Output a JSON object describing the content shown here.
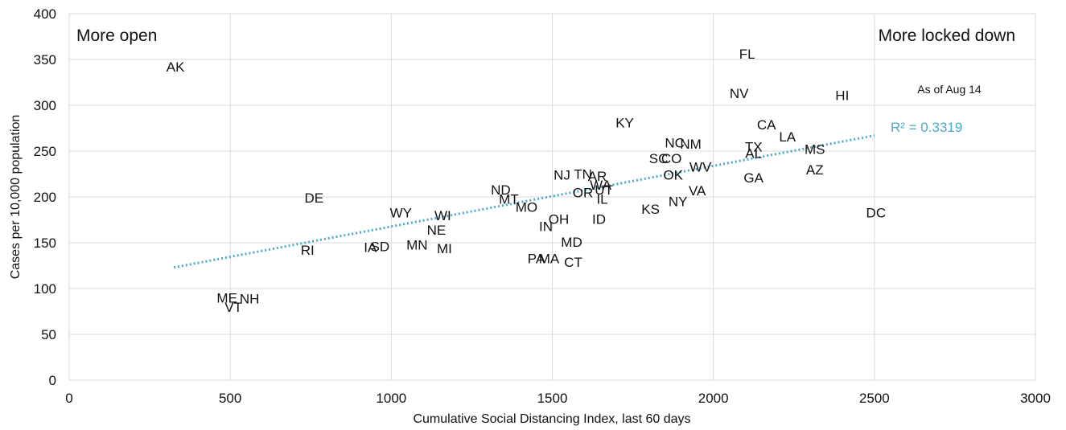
{
  "chart_data": {
    "type": "scatter",
    "xlabel": "Cumulative Social Distancing Index, last 60 days",
    "ylabel": "Cases per 10,000 population",
    "xlim": [
      0,
      3000
    ],
    "ylim": [
      0,
      400
    ],
    "x_ticks": [
      0,
      500,
      1000,
      1500,
      2000,
      2500,
      3000
    ],
    "y_ticks": [
      0,
      50,
      100,
      150,
      200,
      250,
      300,
      350,
      400
    ],
    "grid": true,
    "annotations": {
      "left_label": "More open",
      "right_label": "More locked down",
      "date_note": "As of Aug 14",
      "r_squared": "R² = 0.3319"
    },
    "trendline": {
      "type": "linear",
      "color": "#4bacc6",
      "from": {
        "x": 325,
        "y": 123
      },
      "to": {
        "x": 2500,
        "y": 267
      }
    },
    "points": [
      {
        "label": "AK",
        "x": 330,
        "y": 342
      },
      {
        "label": "ME",
        "x": 490,
        "y": 90
      },
      {
        "label": "NH",
        "x": 560,
        "y": 89
      },
      {
        "label": "VT",
        "x": 510,
        "y": 80
      },
      {
        "label": "RI",
        "x": 740,
        "y": 142
      },
      {
        "label": "DE",
        "x": 760,
        "y": 199
      },
      {
        "label": "IA",
        "x": 935,
        "y": 145
      },
      {
        "label": "SD",
        "x": 965,
        "y": 146
      },
      {
        "label": "WY",
        "x": 1030,
        "y": 183
      },
      {
        "label": "MN",
        "x": 1080,
        "y": 148
      },
      {
        "label": "NE",
        "x": 1140,
        "y": 164
      },
      {
        "label": "WI",
        "x": 1160,
        "y": 180
      },
      {
        "label": "MI",
        "x": 1165,
        "y": 144
      },
      {
        "label": "ND",
        "x": 1340,
        "y": 208
      },
      {
        "label": "MT",
        "x": 1365,
        "y": 198
      },
      {
        "label": "MO",
        "x": 1420,
        "y": 189
      },
      {
        "label": "PA",
        "x": 1450,
        "y": 133
      },
      {
        "label": "MA",
        "x": 1490,
        "y": 133
      },
      {
        "label": "IN",
        "x": 1480,
        "y": 168
      },
      {
        "label": "OH",
        "x": 1520,
        "y": 176
      },
      {
        "label": "NJ",
        "x": 1530,
        "y": 224
      },
      {
        "label": "MD",
        "x": 1560,
        "y": 151
      },
      {
        "label": "CT",
        "x": 1565,
        "y": 129
      },
      {
        "label": "TN",
        "x": 1595,
        "y": 225
      },
      {
        "label": "OR",
        "x": 1595,
        "y": 205
      },
      {
        "label": "AR",
        "x": 1640,
        "y": 223
      },
      {
        "label": "WA",
        "x": 1650,
        "y": 213
      },
      {
        "label": "UT",
        "x": 1660,
        "y": 208
      },
      {
        "label": "IL",
        "x": 1655,
        "y": 198
      },
      {
        "label": "ID",
        "x": 1645,
        "y": 176
      },
      {
        "label": "KY",
        "x": 1725,
        "y": 281
      },
      {
        "label": "KS",
        "x": 1805,
        "y": 187
      },
      {
        "label": "SC",
        "x": 1830,
        "y": 242
      },
      {
        "label": "CO",
        "x": 1870,
        "y": 242
      },
      {
        "label": "OK",
        "x": 1875,
        "y": 224
      },
      {
        "label": "NC",
        "x": 1880,
        "y": 259
      },
      {
        "label": "NM",
        "x": 1930,
        "y": 258
      },
      {
        "label": "NY",
        "x": 1890,
        "y": 195
      },
      {
        "label": "WV",
        "x": 1960,
        "y": 233
      },
      {
        "label": "VA",
        "x": 1950,
        "y": 207
      },
      {
        "label": "NV",
        "x": 2080,
        "y": 313
      },
      {
        "label": "FL",
        "x": 2105,
        "y": 356
      },
      {
        "label": "TX",
        "x": 2125,
        "y": 255
      },
      {
        "label": "AL",
        "x": 2125,
        "y": 248
      },
      {
        "label": "GA",
        "x": 2125,
        "y": 221
      },
      {
        "label": "CA",
        "x": 2165,
        "y": 279
      },
      {
        "label": "LA",
        "x": 2230,
        "y": 266
      },
      {
        "label": "MS",
        "x": 2315,
        "y": 252
      },
      {
        "label": "AZ",
        "x": 2315,
        "y": 230
      },
      {
        "label": "HI",
        "x": 2400,
        "y": 311
      },
      {
        "label": "DC",
        "x": 2505,
        "y": 183
      }
    ]
  }
}
